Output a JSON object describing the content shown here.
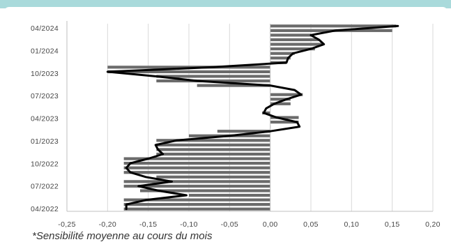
{
  "chart_data": {
    "type": "bar",
    "orientation": "horizontal",
    "title": "",
    "xlabel": "",
    "ylabel": "",
    "xlim": [
      -0.25,
      0.2
    ],
    "x_ticks": [
      -0.25,
      -0.2,
      -0.15,
      -0.1,
      -0.05,
      0.0,
      0.05,
      0.1,
      0.15,
      0.2
    ],
    "x_tick_labels": [
      "-0,25",
      "-0,20",
      "-0,15",
      "-0,10",
      "-0,05",
      "0,00",
      "0,05",
      "0,10",
      "0,15",
      "0,20"
    ],
    "y_tick_labels": [
      "04/2022",
      "07/2022",
      "10/2022",
      "01/2023",
      "04/2023",
      "07/2023",
      "10/2023",
      "01/2024",
      "04/2024"
    ],
    "grid": "vertical",
    "bar_color": "#6b6b6b",
    "line_color": "#000000",
    "bar_values": [
      -0.18,
      -0.18,
      -0.18,
      -0.1,
      -0.16,
      -0.18,
      -0.18,
      -0.14,
      -0.18,
      -0.18,
      -0.18,
      -0.18,
      -0.14,
      -0.14,
      -0.14,
      -0.14,
      -0.1,
      -0.065,
      0.0,
      0.035,
      0.035,
      -0.01,
      0.0,
      0.025,
      0.025,
      0.04,
      0.0,
      -0.09,
      -0.14,
      -0.14,
      -0.2,
      -0.2,
      0.02,
      0.025,
      0.03,
      0.055,
      0.065,
      0.06,
      0.05,
      0.15,
      0.155
    ],
    "line_values": [
      -0.177,
      -0.177,
      -0.152,
      -0.103,
      -0.137,
      -0.162,
      -0.121,
      -0.153,
      -0.172,
      -0.177,
      -0.172,
      -0.15,
      -0.132,
      -0.138,
      -0.141,
      -0.115,
      -0.05,
      0.0,
      0.036,
      0.033,
      0.008,
      -0.008,
      -0.005,
      0.005,
      0.02,
      0.038,
      0.03,
      0.0,
      -0.09,
      -0.14,
      -0.2,
      -0.07,
      0.02,
      0.022,
      0.028,
      0.05,
      0.066,
      0.06,
      0.05,
      0.08,
      0.157
    ],
    "footnote": "*Sensibilité moyenne au cours du mois"
  }
}
